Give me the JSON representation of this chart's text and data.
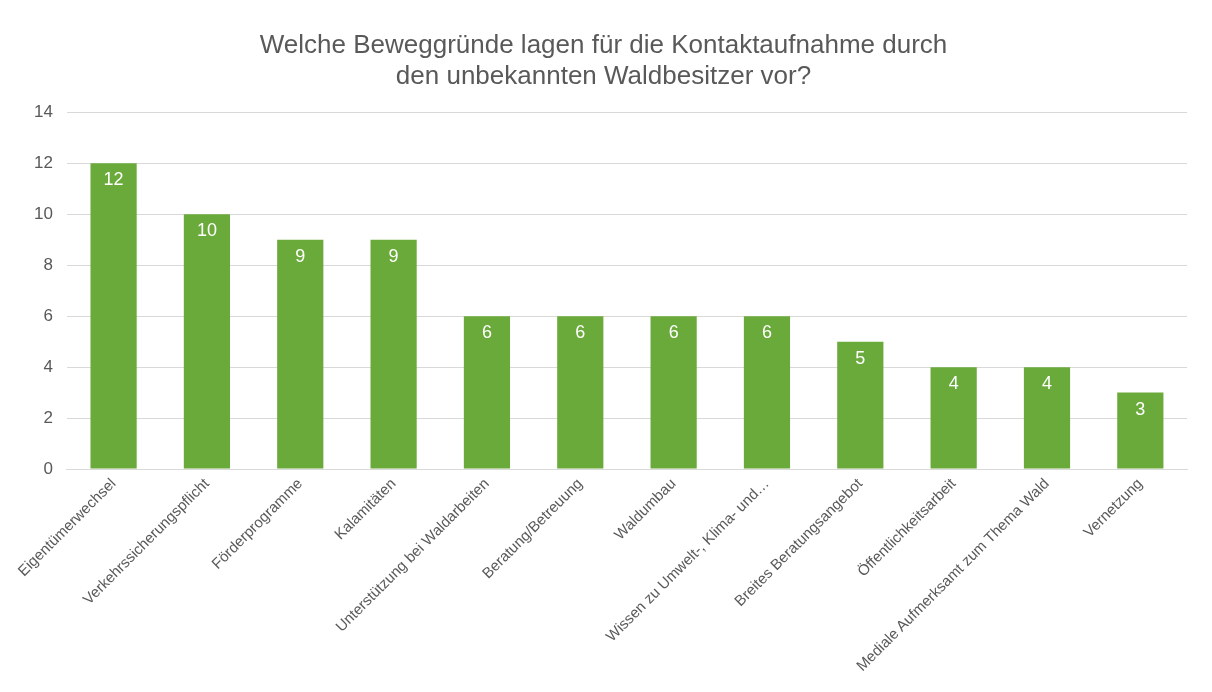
{
  "chart_data": {
    "type": "bar",
    "title": "Welche Beweggründe lagen für die Kontaktaufnahme durch den unbekannten Waldbesitzer vor?",
    "categories": [
      "Eigentümerwechsel",
      "Verkehrssicherungspflicht",
      "Förderprogramme",
      "Kalamitäten",
      "Unterstützung bei Waldarbeiten",
      "Beratung/Betreuung",
      "Waldumbau",
      "Wissen zu Umwelt-, Klima- und…",
      "Breites Beratungsangebot",
      "Öffentlichkeitsarbeit",
      "Mediale Aufmerksamt zum Thema Wald",
      "Vernetzung"
    ],
    "values": [
      12,
      10,
      9,
      9,
      6,
      6,
      6,
      6,
      5,
      4,
      4,
      3
    ],
    "color": "#6aaa3a",
    "ylim": [
      0,
      14
    ],
    "yticks": [
      0,
      2,
      4,
      6,
      8,
      10,
      12,
      14
    ],
    "grid": "y",
    "data_labels": true,
    "legend": false
  }
}
